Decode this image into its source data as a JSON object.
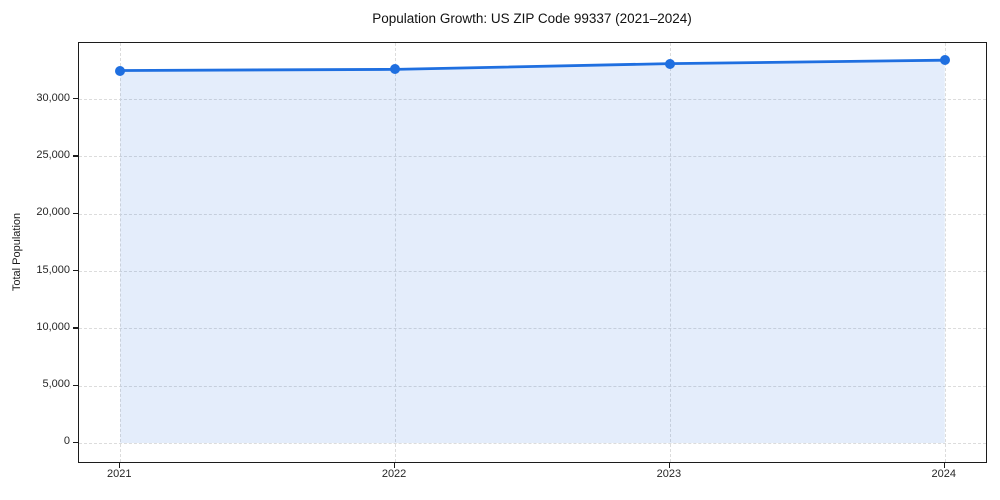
{
  "chart_data": {
    "type": "area",
    "title": "Population Growth: US ZIP Code 99337 (2021–2024)",
    "ylabel": "Total Population",
    "xlabel": "",
    "categories": [
      "2021",
      "2022",
      "2023",
      "2024"
    ],
    "series": [
      {
        "name": "Total Population",
        "values": [
          32500,
          32600,
          33100,
          33400
        ]
      }
    ],
    "fill_to": 0,
    "ylim": [
      -1660,
      34900
    ],
    "yticks": [
      0,
      5000,
      10000,
      15000,
      20000,
      25000,
      30000
    ],
    "ytick_labels": [
      "0",
      "5,000",
      "10,000",
      "15,000",
      "20,000",
      "25,000",
      "30,000"
    ],
    "xtick_labels": [
      "2021",
      "2022",
      "2023",
      "2024"
    ],
    "x_margin": 0.05,
    "grid": "dashed-both-axes",
    "legend": "none",
    "colors": {
      "line": "#1f6fe0",
      "fill": "rgba(31,111,224,0.12)",
      "grid": "#dcdcdc",
      "spine": "#1c1c1c",
      "text": "#1a1a1a",
      "background": "#ffffff"
    }
  }
}
